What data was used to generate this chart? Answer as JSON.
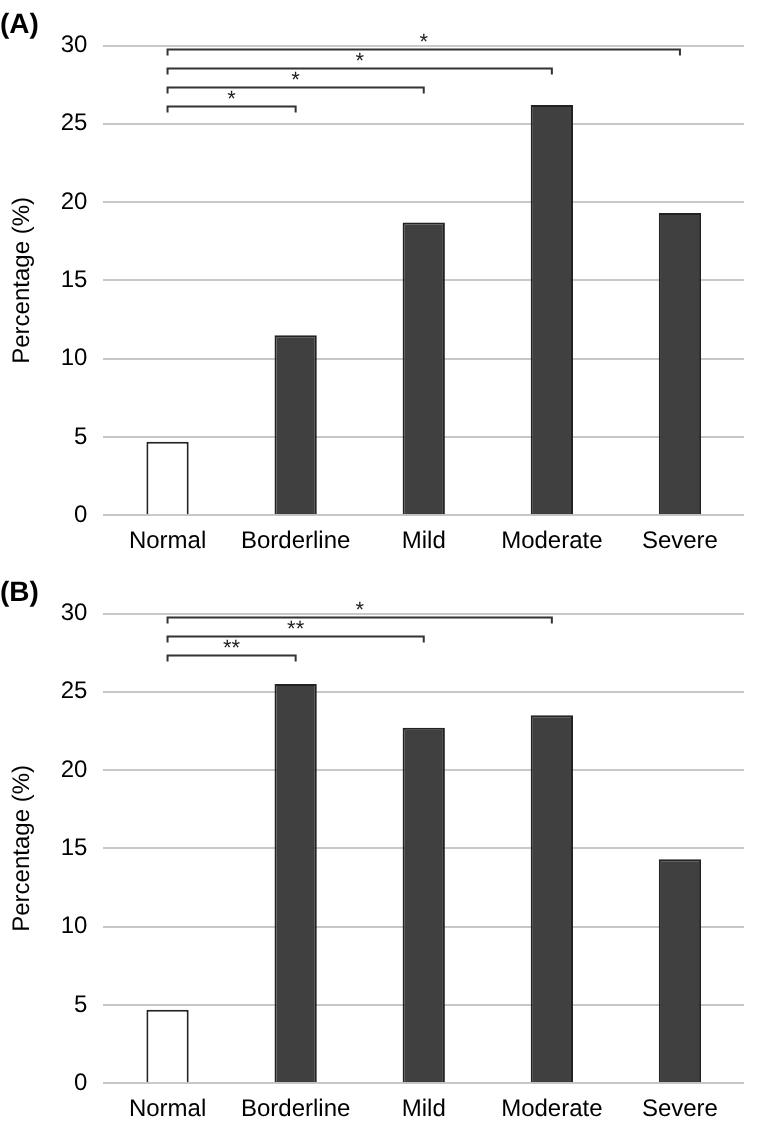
{
  "chart_data": [
    {
      "type": "bar",
      "title": "(A)",
      "ylabel": "Percentage (%)",
      "categories": [
        "Normal",
        "Borderline",
        "Mild",
        "Moderate",
        "Severe"
      ],
      "values": [
        4.7,
        11.5,
        18.7,
        26.2,
        19.3
      ],
      "colors": [
        "#ffffff",
        "#404040",
        "#404040",
        "#404040",
        "#404040"
      ],
      "ylim": [
        0,
        30
      ],
      "yticks": [
        0,
        5,
        10,
        15,
        20,
        25,
        30
      ],
      "grid": "y",
      "legend": false,
      "annotations": [
        "*",
        "*",
        "*",
        "*"
      ]
    },
    {
      "type": "bar",
      "title": "(B)",
      "ylabel": "Percentage (%)",
      "categories": [
        "Normal",
        "Borderline",
        "Mild",
        "Moderate",
        "Severe"
      ],
      "values": [
        4.7,
        25.5,
        22.7,
        23.5,
        14.3
      ],
      "colors": [
        "#ffffff",
        "#404040",
        "#404040",
        "#404040",
        "#404040"
      ],
      "ylim": [
        0,
        30
      ],
      "yticks": [
        0,
        5,
        10,
        15,
        20,
        25,
        30
      ],
      "grid": "y",
      "legend": false,
      "annotations": [
        "**",
        "**",
        "*"
      ]
    }
  ]
}
